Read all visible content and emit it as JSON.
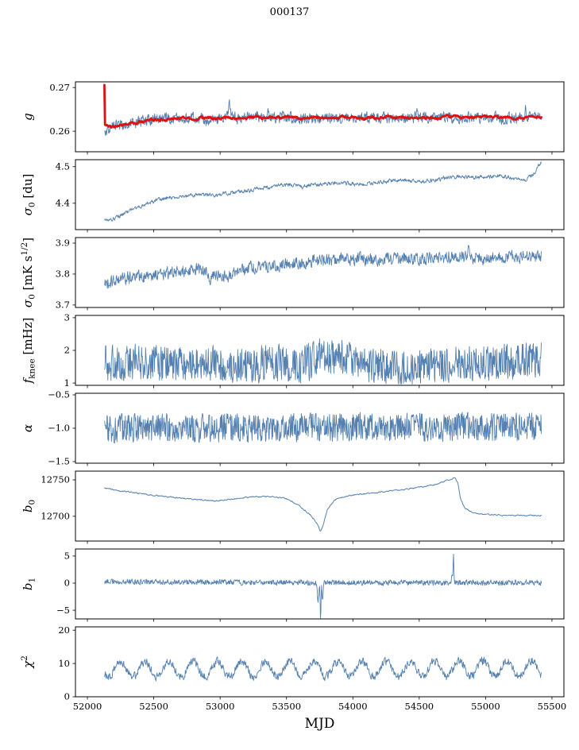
{
  "title": "000137",
  "xlabel": "MJD",
  "colors": {
    "line": "#5581b0",
    "overlay": "#dd1111",
    "axis": "#000000"
  },
  "axis": {
    "xlim": [
      51910,
      55590
    ],
    "x_data_range": [
      52130,
      55420
    ],
    "xticks": [
      {
        "v": 52000,
        "label": "52000"
      },
      {
        "v": 52500,
        "label": "52500"
      },
      {
        "v": 53000,
        "label": "53000"
      },
      {
        "v": 53500,
        "label": "53500"
      },
      {
        "v": 54000,
        "label": "54000"
      },
      {
        "v": 54500,
        "label": "54500"
      },
      {
        "v": 55000,
        "label": "55000"
      },
      {
        "v": 55500,
        "label": "55500"
      }
    ]
  },
  "chart_data": [
    {
      "type": "line",
      "name": "g",
      "ylim": [
        0.2553,
        0.2713
      ],
      "yticks": [
        {
          "v": 0.26,
          "label": "0.26"
        },
        {
          "v": 0.27,
          "label": "0.27"
        }
      ],
      "label_parts": [
        {
          "text": "g",
          "italic": true
        }
      ],
      "series": [
        {
          "name": "g-raw",
          "color": "#5581b0",
          "width": 0.9,
          "n": 1100,
          "seed": 11,
          "anchors": [
            [
              52130,
              0.2606
            ],
            [
              52150,
              0.26
            ],
            [
              52180,
              0.261
            ],
            [
              52250,
              0.2615
            ],
            [
              52350,
              0.262
            ],
            [
              52500,
              0.2627
            ],
            [
              52700,
              0.2629
            ],
            [
              53000,
              0.263
            ],
            [
              53400,
              0.2632
            ],
            [
              53700,
              0.2629
            ],
            [
              54000,
              0.2632
            ],
            [
              54300,
              0.263
            ],
            [
              54700,
              0.2632
            ],
            [
              55000,
              0.2631
            ],
            [
              55250,
              0.2629
            ],
            [
              55420,
              0.2634
            ]
          ],
          "noise": {
            "amp": 0.0014,
            "smooth": 0.35
          },
          "spikes": [
            {
              "x": 53070,
              "a": 0.003,
              "w": 12
            },
            {
              "x": 52890,
              "a": -0.0012,
              "w": 8
            },
            {
              "x": 54480,
              "a": 0.0013,
              "w": 8
            },
            {
              "x": 55300,
              "a": 0.0022,
              "w": 10
            },
            {
              "x": 53360,
              "a": 0.0015,
              "w": 6
            }
          ]
        },
        {
          "name": "g-smoothed-fit",
          "color": "#dd1111",
          "width": 2.8,
          "n": 700,
          "seed": 12,
          "anchors": [
            [
              52128,
              0.2706
            ],
            [
              52132,
              0.2613
            ],
            [
              52200,
              0.261
            ],
            [
              52300,
              0.2616
            ],
            [
              52450,
              0.2624
            ],
            [
              52600,
              0.2629
            ],
            [
              52800,
              0.263
            ],
            [
              53100,
              0.2631
            ],
            [
              53400,
              0.2632
            ],
            [
              53700,
              0.263
            ],
            [
              54000,
              0.2632
            ],
            [
              54300,
              0.2631
            ],
            [
              54700,
              0.2632
            ],
            [
              55000,
              0.2632
            ],
            [
              55250,
              0.263
            ],
            [
              55420,
              0.2633
            ]
          ],
          "noise": {
            "amp": 0.0004,
            "smooth": 0.8
          },
          "spikes": []
        }
      ]
    },
    {
      "type": "line",
      "name": "sigma0-du",
      "ylim": [
        4.328,
        4.519
      ],
      "yticks": [
        {
          "v": 4.4,
          "label": "4.4"
        },
        {
          "v": 4.5,
          "label": "4.5"
        }
      ],
      "label_parts": [
        {
          "text": "σ",
          "italic": true
        },
        {
          "text": "0",
          "sub": true
        },
        {
          "text": " [du]"
        }
      ],
      "series": [
        {
          "name": "sigma0-du",
          "color": "#5581b0",
          "width": 0.9,
          "n": 1100,
          "seed": 21,
          "anchors": [
            [
              52130,
              4.352
            ],
            [
              52180,
              4.355
            ],
            [
              52300,
              4.375
            ],
            [
              52450,
              4.4
            ],
            [
              52600,
              4.415
            ],
            [
              52750,
              4.42
            ],
            [
              52850,
              4.423
            ],
            [
              52950,
              4.421
            ],
            [
              53100,
              4.43
            ],
            [
              53250,
              4.436
            ],
            [
              53400,
              4.447
            ],
            [
              53500,
              4.451
            ],
            [
              53620,
              4.446
            ],
            [
              53750,
              4.452
            ],
            [
              53900,
              4.456
            ],
            [
              54050,
              4.451
            ],
            [
              54200,
              4.457
            ],
            [
              54350,
              4.464
            ],
            [
              54500,
              4.459
            ],
            [
              54650,
              4.466
            ],
            [
              54800,
              4.473
            ],
            [
              54950,
              4.47
            ],
            [
              55100,
              4.476
            ],
            [
              55200,
              4.468
            ],
            [
              55300,
              4.462
            ],
            [
              55360,
              4.48
            ],
            [
              55420,
              4.513
            ]
          ],
          "noise": {
            "amp": 0.006,
            "smooth": 0.45
          },
          "spikes": []
        }
      ]
    },
    {
      "type": "line",
      "name": "sigma0-mK",
      "ylim": [
        3.692,
        3.918
      ],
      "yticks": [
        {
          "v": 3.7,
          "label": "3.7"
        },
        {
          "v": 3.8,
          "label": "3.8"
        },
        {
          "v": 3.9,
          "label": "3.9"
        }
      ],
      "label_parts": [
        {
          "text": "σ",
          "italic": true
        },
        {
          "text": "0",
          "sub": true
        },
        {
          "text": " [mK s"
        },
        {
          "text": "1/2",
          "sup": true
        },
        {
          "text": "]"
        }
      ],
      "series": [
        {
          "name": "sigma0-mK",
          "color": "#5581b0",
          "width": 0.9,
          "n": 1100,
          "seed": 31,
          "anchors": [
            [
              52130,
              3.768
            ],
            [
              52250,
              3.785
            ],
            [
              52400,
              3.79
            ],
            [
              52550,
              3.8
            ],
            [
              52700,
              3.81
            ],
            [
              52850,
              3.818
            ],
            [
              52950,
              3.8
            ],
            [
              53050,
              3.79
            ],
            [
              53150,
              3.812
            ],
            [
              53300,
              3.825
            ],
            [
              53450,
              3.828
            ],
            [
              53600,
              3.838
            ],
            [
              53750,
              3.842
            ],
            [
              53900,
              3.846
            ],
            [
              54050,
              3.85
            ],
            [
              54200,
              3.843
            ],
            [
              54350,
              3.852
            ],
            [
              54500,
              3.848
            ],
            [
              54650,
              3.852
            ],
            [
              54800,
              3.858
            ],
            [
              54950,
              3.848
            ],
            [
              55100,
              3.855
            ],
            [
              55250,
              3.856
            ],
            [
              55420,
              3.858
            ]
          ],
          "noise": {
            "amp": 0.022,
            "smooth": 0.3
          },
          "spikes": [
            {
              "x": 54870,
              "a": 0.035,
              "w": 8
            },
            {
              "x": 52920,
              "a": -0.04,
              "w": 10
            }
          ]
        }
      ]
    },
    {
      "type": "line",
      "name": "f-knee",
      "ylim": [
        0.93,
        3.07
      ],
      "yticks": [
        {
          "v": 1,
          "label": "1"
        },
        {
          "v": 2,
          "label": "2"
        },
        {
          "v": 3,
          "label": "3"
        }
      ],
      "label_parts": [
        {
          "text": "f",
          "italic": true
        },
        {
          "text": "knee",
          "sub": true
        },
        {
          "text": " [mHz]"
        }
      ],
      "series": [
        {
          "name": "f-knee",
          "color": "#5581b0",
          "width": 0.9,
          "n": 1100,
          "seed": 41,
          "anchors": [
            [
              52130,
              1.62
            ],
            [
              52600,
              1.6
            ],
            [
              53000,
              1.58
            ],
            [
              53400,
              1.6
            ],
            [
              53600,
              1.55
            ],
            [
              53800,
              1.85
            ],
            [
              53950,
              1.75
            ],
            [
              54100,
              1.55
            ],
            [
              54400,
              1.5
            ],
            [
              54700,
              1.55
            ],
            [
              55000,
              1.65
            ],
            [
              55200,
              1.7
            ],
            [
              55420,
              1.68
            ]
          ],
          "noise": {
            "amp": 0.62,
            "smooth": 0.15
          },
          "spikes": []
        }
      ]
    },
    {
      "type": "line",
      "name": "alpha",
      "ylim": [
        -1.524,
        -0.476
      ],
      "yticks": [
        {
          "v": -1.5,
          "label": "−1.5"
        },
        {
          "v": -1.0,
          "label": "−1.0"
        },
        {
          "v": -0.5,
          "label": "−0.5"
        }
      ],
      "label_parts": [
        {
          "text": "α",
          "italic": true
        }
      ],
      "series": [
        {
          "name": "alpha",
          "color": "#5581b0",
          "width": 0.9,
          "n": 1100,
          "seed": 51,
          "anchors": [
            [
              52130,
              -1.0
            ],
            [
              53500,
              -0.99
            ],
            [
              55420,
              -0.98
            ]
          ],
          "noise": {
            "amp": 0.24,
            "smooth": 0.1
          },
          "spikes": []
        }
      ]
    },
    {
      "type": "line",
      "name": "b0",
      "ylim": [
        12666,
        12762
      ],
      "yticks": [
        {
          "v": 12700,
          "label": "12700"
        },
        {
          "v": 12750,
          "label": "12750"
        }
      ],
      "label_parts": [
        {
          "text": "b",
          "italic": true
        },
        {
          "text": "0",
          "sub": true
        }
      ],
      "series": [
        {
          "name": "b0",
          "color": "#5581b0",
          "width": 1.0,
          "n": 900,
          "seed": 61,
          "anchors": [
            [
              52130,
              12739
            ],
            [
              52250,
              12735
            ],
            [
              52400,
              12731
            ],
            [
              52600,
              12727
            ],
            [
              52800,
              12723
            ],
            [
              52950,
              12721
            ],
            [
              53100,
              12724
            ],
            [
              53250,
              12727
            ],
            [
              53400,
              12727
            ],
            [
              53500,
              12724
            ],
            [
              53600,
              12714
            ],
            [
              53680,
              12702
            ],
            [
              53730,
              12690
            ],
            [
              53755,
              12679
            ],
            [
              53775,
              12688
            ],
            [
              53810,
              12710
            ],
            [
              53860,
              12722
            ],
            [
              53950,
              12728
            ],
            [
              54100,
              12731
            ],
            [
              54250,
              12734
            ],
            [
              54400,
              12737
            ],
            [
              54550,
              12741
            ],
            [
              54650,
              12745
            ],
            [
              54720,
              12750
            ],
            [
              54770,
              12753
            ],
            [
              54790,
              12746
            ],
            [
              54810,
              12725
            ],
            [
              54840,
              12712
            ],
            [
              54890,
              12706
            ],
            [
              54960,
              12703
            ],
            [
              55100,
              12702
            ],
            [
              55250,
              12701
            ],
            [
              55420,
              12701
            ]
          ],
          "noise": {
            "amp": 1.0,
            "smooth": 0.6
          },
          "spikes": []
        }
      ]
    },
    {
      "type": "line",
      "name": "b1",
      "ylim": [
        -6.6,
        6.3
      ],
      "yticks": [
        {
          "v": -5,
          "label": "−5"
        },
        {
          "v": 0,
          "label": "0"
        },
        {
          "v": 5,
          "label": "5"
        }
      ],
      "label_parts": [
        {
          "text": "b",
          "italic": true
        },
        {
          "text": "1",
          "sub": true
        }
      ],
      "series": [
        {
          "name": "b1",
          "color": "#5581b0",
          "width": 0.9,
          "n": 1100,
          "seed": 71,
          "anchors": [
            [
              52130,
              0.3
            ],
            [
              53000,
              0.15
            ],
            [
              54000,
              0.1
            ],
            [
              55420,
              0.1
            ]
          ],
          "noise": {
            "amp": 0.55,
            "smooth": 0.2
          },
          "spikes": [
            {
              "x": 53738,
              "a": -3.2,
              "w": 9
            },
            {
              "x": 53757,
              "a": -6.8,
              "w": 4
            },
            {
              "x": 53772,
              "a": -3.5,
              "w": 6
            },
            {
              "x": 54758,
              "a": 4.9,
              "w": 4
            },
            {
              "x": 54748,
              "a": 1.4,
              "w": 7
            }
          ]
        }
      ]
    },
    {
      "type": "line",
      "name": "chi2",
      "ylim": [
        0,
        21
      ],
      "yticks": [
        {
          "v": 0,
          "label": "0"
        },
        {
          "v": 10,
          "label": "10"
        },
        {
          "v": 20,
          "label": "20"
        }
      ],
      "label_parts": [
        {
          "text": "χ",
          "italic": true
        },
        {
          "text": "2",
          "sup": true
        }
      ],
      "series": [
        {
          "name": "chi2",
          "color": "#5581b0",
          "width": 0.9,
          "n": 1100,
          "seed": 81,
          "anchors": [
            [
              52130,
              8.2
            ],
            [
              53500,
              8.4
            ],
            [
              54500,
              8.3
            ],
            [
              55420,
              8.6
            ]
          ],
          "noise": {
            "amp": 1.3,
            "smooth": 0.3
          },
          "spikes": [],
          "osc": {
            "period": 182,
            "amp": 2.3,
            "phase": -2.57
          }
        }
      ]
    }
  ]
}
